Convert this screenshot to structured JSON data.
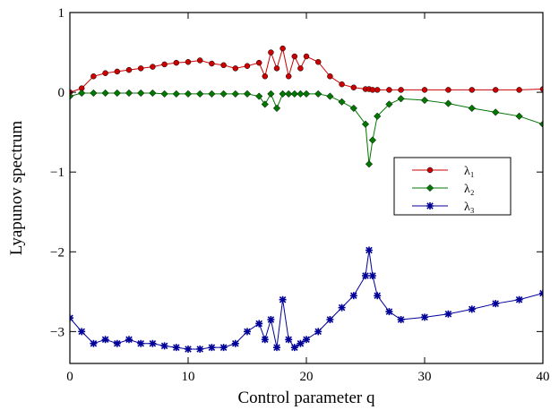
{
  "chart_data": {
    "type": "line",
    "xlabel": "Control parameter q",
    "ylabel": "Lyapunov spectrum",
    "xlim": [
      0,
      40
    ],
    "ylim": [
      -3.4,
      1
    ],
    "xticks": [
      "0",
      "10",
      "20",
      "30",
      "40"
    ],
    "yticks": [
      "1",
      "0",
      "−1",
      "−2",
      "−3"
    ],
    "grid": false,
    "legend_position": "center-right",
    "x": [
      0.0,
      1.0,
      2.0,
      3.0,
      4.0,
      5.0,
      6.0,
      7.0,
      8.0,
      9.0,
      10.0,
      11.0,
      12.0,
      13.0,
      14.0,
      15.0,
      16.0,
      16.5,
      17.0,
      17.5,
      18.0,
      18.5,
      19.0,
      19.5,
      20.0,
      21.0,
      22.0,
      23.0,
      24.0,
      25.0,
      25.3,
      25.6,
      26.0,
      27.0,
      28.0,
      30.0,
      32.0,
      34.0,
      36.0,
      38.0,
      40.0
    ],
    "series": [
      {
        "name": "λ₁",
        "color": "#cc0000",
        "marker": "circle",
        "values": [
          0.0,
          0.05,
          0.2,
          0.24,
          0.26,
          0.28,
          0.3,
          0.32,
          0.35,
          0.37,
          0.38,
          0.4,
          0.36,
          0.34,
          0.3,
          0.33,
          0.37,
          0.2,
          0.5,
          0.3,
          0.55,
          0.2,
          0.45,
          0.3,
          0.45,
          0.38,
          0.2,
          0.1,
          0.06,
          0.04,
          0.04,
          0.03,
          0.03,
          0.03,
          0.03,
          0.03,
          0.03,
          0.03,
          0.03,
          0.03,
          0.04
        ]
      },
      {
        "name": "λ₂",
        "color": "#007700",
        "marker": "diamond",
        "values": [
          -0.05,
          -0.01,
          -0.01,
          -0.01,
          -0.01,
          -0.01,
          -0.01,
          -0.01,
          -0.02,
          -0.02,
          -0.02,
          -0.02,
          -0.02,
          -0.02,
          -0.02,
          -0.02,
          -0.05,
          -0.15,
          -0.02,
          -0.2,
          -0.02,
          -0.02,
          -0.02,
          -0.02,
          -0.02,
          -0.02,
          -0.05,
          -0.12,
          -0.2,
          -0.4,
          -0.9,
          -0.6,
          -0.3,
          -0.15,
          -0.08,
          -0.1,
          -0.14,
          -0.2,
          -0.25,
          -0.3,
          -0.4
        ]
      },
      {
        "name": "λ₃",
        "color": "#000099",
        "marker": "star",
        "values": [
          -2.83,
          -3.0,
          -3.15,
          -3.1,
          -3.15,
          -3.1,
          -3.15,
          -3.15,
          -3.18,
          -3.2,
          -3.22,
          -3.22,
          -3.2,
          -3.2,
          -3.15,
          -3.0,
          -2.9,
          -3.1,
          -2.85,
          -3.2,
          -2.6,
          -3.1,
          -3.2,
          -3.15,
          -3.1,
          -3.0,
          -2.85,
          -2.7,
          -2.55,
          -2.3,
          -1.98,
          -2.3,
          -2.55,
          -2.75,
          -2.85,
          -2.82,
          -2.78,
          -2.72,
          -2.65,
          -2.6,
          -2.52
        ]
      }
    ]
  }
}
